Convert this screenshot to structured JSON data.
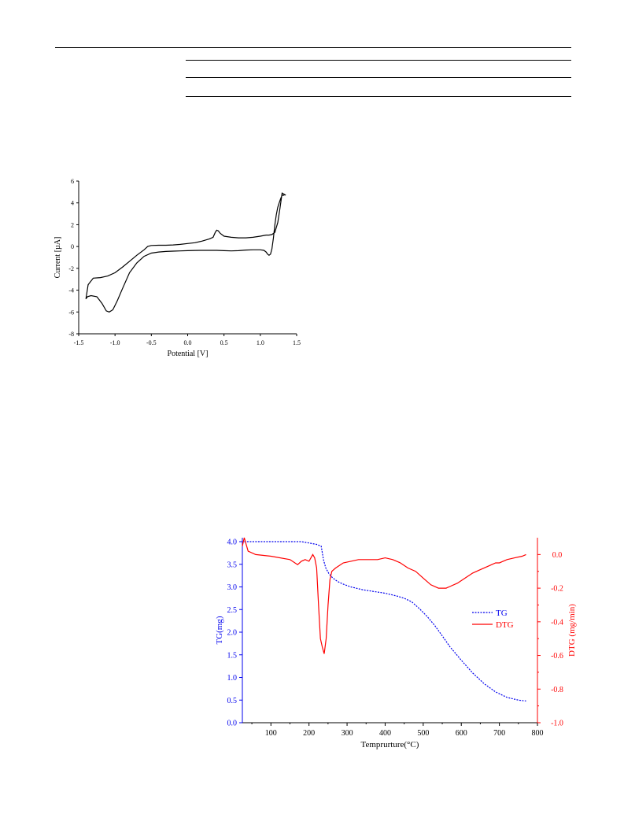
{
  "chart_data": [
    {
      "type": "line",
      "title": "",
      "xlabel": "Potential [V]",
      "ylabel": "Current [µA]",
      "xlim": [
        -1.5,
        1.5
      ],
      "ylim": [
        -8,
        6
      ],
      "xticks": [
        "-1.5",
        "-1.0",
        "-0.5",
        "0.0",
        "0.5",
        "1.0",
        "1.5"
      ],
      "yticks": [
        "-8",
        "-6",
        "-4",
        "-2",
        "0",
        "2",
        "4",
        "6"
      ],
      "grid": false,
      "series": [
        {
          "color": "#000000",
          "x": [
            1.35,
            1.3,
            1.27,
            1.24,
            1.2,
            1.16,
            1.12,
            1.08,
            1.0,
            0.9,
            0.8,
            0.7,
            0.6,
            0.5,
            0.45,
            0.42,
            0.4,
            0.38,
            0.35,
            0.3,
            0.2,
            0.1,
            0.0,
            -0.1,
            -0.2,
            -0.3,
            -0.4,
            -0.5,
            -0.55,
            -0.6,
            -0.7,
            -0.8,
            -0.9,
            -1.0,
            -1.1,
            -1.2,
            -1.3,
            -1.37,
            -1.4,
            -1.38,
            -1.33,
            -1.25,
            -1.18,
            -1.12,
            -1.08,
            -1.03,
            -0.97,
            -0.9,
            -0.8,
            -0.7,
            -0.6,
            -0.5,
            -0.4,
            -0.3,
            -0.2,
            -0.1,
            0.0,
            0.1,
            0.2,
            0.3,
            0.4,
            0.5,
            0.6,
            0.7,
            0.8,
            0.9,
            1.0,
            1.05,
            1.08,
            1.1,
            1.12,
            1.14,
            1.16,
            1.18,
            1.2,
            1.22,
            1.24,
            1.26,
            1.28,
            1.3,
            1.33
          ],
          "y": [
            4.7,
            4.9,
            3.5,
            2.2,
            1.3,
            1.1,
            1.05,
            1.05,
            0.95,
            0.85,
            0.8,
            0.8,
            0.85,
            0.95,
            1.2,
            1.45,
            1.5,
            1.3,
            0.85,
            0.7,
            0.5,
            0.35,
            0.28,
            0.2,
            0.15,
            0.12,
            0.12,
            0.1,
            0.0,
            -0.3,
            -0.8,
            -1.35,
            -1.9,
            -2.4,
            -2.7,
            -2.85,
            -2.9,
            -3.5,
            -4.8,
            -4.6,
            -4.5,
            -4.6,
            -5.2,
            -5.9,
            -6.0,
            -5.8,
            -5.0,
            -3.9,
            -2.4,
            -1.5,
            -0.9,
            -0.6,
            -0.5,
            -0.45,
            -0.42,
            -0.4,
            -0.38,
            -0.36,
            -0.35,
            -0.35,
            -0.35,
            -0.38,
            -0.4,
            -0.38,
            -0.32,
            -0.3,
            -0.3,
            -0.35,
            -0.5,
            -0.7,
            -0.8,
            -0.7,
            -0.2,
            0.8,
            2.0,
            2.9,
            3.6,
            4.0,
            4.4,
            4.7,
            4.7
          ]
        }
      ]
    },
    {
      "type": "line",
      "title": "",
      "xlabel": "Temprurture(°C)",
      "ylabel": "TG(mg)",
      "y2label": "DTG (mg/min)",
      "xlim": [
        25,
        800
      ],
      "ylim": [
        0.0,
        4.0
      ],
      "y2lim": [
        -1.0,
        0.1
      ],
      "xticks": [
        "100",
        "200",
        "300",
        "400",
        "500",
        "600",
        "700",
        "800"
      ],
      "yticks": [
        "0.0",
        "0.5",
        "1.0",
        "1.5",
        "2.0",
        "2.5",
        "3.0",
        "3.5",
        "4.0"
      ],
      "y2ticks": [
        "-1.0",
        "-0.8",
        "-0.6",
        "-0.4",
        "-0.2",
        "0.0"
      ],
      "legend": "right",
      "grid": false,
      "series": [
        {
          "name": "TG",
          "axis": "left",
          "color": "#0000ee",
          "dashed": true,
          "x": [
            30,
            60,
            100,
            150,
            180,
            200,
            220,
            232,
            238,
            244,
            252,
            262,
            275,
            290,
            310,
            340,
            370,
            400,
            430,
            450,
            470,
            490,
            510,
            530,
            550,
            570,
            600,
            630,
            660,
            690,
            720,
            750,
            770
          ],
          "y": [
            4.0,
            4.0,
            4.0,
            4.0,
            4.0,
            3.97,
            3.94,
            3.9,
            3.6,
            3.42,
            3.3,
            3.2,
            3.12,
            3.06,
            3.0,
            2.94,
            2.9,
            2.86,
            2.8,
            2.75,
            2.67,
            2.52,
            2.35,
            2.15,
            1.92,
            1.68,
            1.38,
            1.1,
            0.86,
            0.68,
            0.56,
            0.5,
            0.48
          ]
        },
        {
          "name": "DTG",
          "axis": "right",
          "color": "#ff0000",
          "dashed": false,
          "x": [
            25,
            30,
            40,
            60,
            100,
            150,
            170,
            180,
            190,
            200,
            210,
            215,
            220,
            225,
            230,
            235,
            240,
            245,
            250,
            255,
            260,
            270,
            290,
            310,
            330,
            350,
            380,
            400,
            420,
            440,
            460,
            480,
            500,
            520,
            540,
            550,
            560,
            570,
            590,
            610,
            630,
            650,
            670,
            690,
            700,
            720,
            740,
            760,
            770
          ],
          "y": [
            0.05,
            0.1,
            0.02,
            0.0,
            -0.01,
            -0.03,
            -0.06,
            -0.04,
            -0.03,
            -0.04,
            0.0,
            -0.02,
            -0.08,
            -0.3,
            -0.5,
            -0.55,
            -0.59,
            -0.5,
            -0.3,
            -0.15,
            -0.1,
            -0.08,
            -0.05,
            -0.04,
            -0.03,
            -0.03,
            -0.03,
            -0.02,
            -0.03,
            -0.05,
            -0.08,
            -0.1,
            -0.14,
            -0.18,
            -0.2,
            -0.2,
            -0.2,
            -0.19,
            -0.17,
            -0.14,
            -0.11,
            -0.09,
            -0.07,
            -0.05,
            -0.05,
            -0.03,
            -0.02,
            -0.01,
            0.0
          ]
        }
      ]
    }
  ]
}
